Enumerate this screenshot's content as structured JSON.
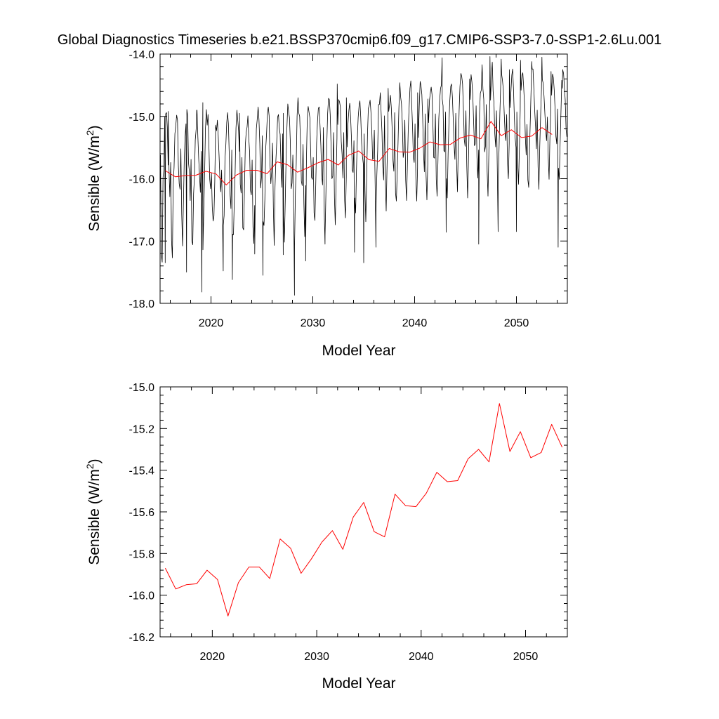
{
  "figure_title": "Global Diagnostics Timeseries b.e21.BSSP370cmip6.f09_g17.CMIP6-SSP3-7.0-SSP1-2.6Lu.001",
  "colors": {
    "monthly": "#000000",
    "annual": "#ff0000",
    "axes": "#000000",
    "background": "#ffffff"
  },
  "chart_data": [
    {
      "type": "line",
      "title": "",
      "xlabel": "Model Year",
      "ylabel": "Sensible (W/m²)",
      "ylabel_base": "Sensible (W/m",
      "ylabel_sup": "2",
      "ylabel_tail": ")",
      "xlim": [
        2015,
        2055
      ],
      "ylim": [
        -18.0,
        -14.0
      ],
      "xticks": [
        2020,
        2030,
        2040,
        2050
      ],
      "yticks": [
        -18.0,
        -17.0,
        -16.0,
        -15.0,
        -14.0
      ],
      "ytick_labels": [
        "-18.0",
        "-17.0",
        "-16.0",
        "-15.0",
        "-14.0"
      ],
      "grid": false,
      "series": [
        {
          "style": "monthly",
          "x_start": 2015.0417,
          "x_step": 0.0833333,
          "monthly_cycle": [
            -15.6,
            -16.6,
            -17.0,
            -16.4,
            -15.7,
            -15.3,
            -15.1,
            -15.0,
            -15.2,
            -15.6,
            -16.1,
            -16.2
          ],
          "values": [
            -15.62,
            -17.22,
            -17.34,
            -15.98,
            -15.86,
            -15.01,
            -14.96,
            -14.94,
            -15.17,
            -15.78,
            -15.85,
            -16.29,
            -15.74,
            -16.99,
            -17.27,
            -16.09,
            -15.82,
            -15.28,
            -15.14,
            -14.98,
            -15.06,
            -15.79,
            -16.08,
            -16.17,
            -15.52,
            -16.57,
            -17.08,
            -16.42,
            -15.71,
            -15.33,
            -15.12,
            -14.89,
            -14.99,
            -15.75,
            -15.88,
            -16.35,
            -15.69,
            -17.0,
            -17.06,
            -16.24,
            -15.99,
            -15.38,
            -15.2,
            -14.9,
            -15.33,
            -15.68,
            -15.96,
            -16.22,
            -15.56,
            -16.43,
            -17.14,
            -16.52,
            -15.94,
            -15.19,
            -14.89,
            -15.14,
            -14.97,
            -15.46,
            -16.01,
            -16.16,
            -15.91,
            -16.45,
            -16.68,
            -16.6,
            -16.04,
            -15.14,
            -15.23,
            -15.06,
            -15.32,
            -15.63,
            -16.0,
            -16.21,
            -15.86,
            -16.55,
            -16.75,
            -16.59,
            -15.68,
            -15.47,
            -15.1,
            -14.94,
            -15.12,
            -15.61,
            -16.26,
            -16.48,
            -15.54,
            -16.89,
            -16.9,
            -16.35,
            -15.89,
            -15.19,
            -14.9,
            -15.06,
            -15.23,
            -15.56,
            -16.09,
            -16.23,
            -15.66,
            -16.79,
            -16.82,
            -16.15,
            -15.46,
            -15.26,
            -15.17,
            -14.99,
            -15.35,
            -15.57,
            -16.18,
            -16.26,
            -15.7,
            -16.78,
            -17.04,
            -16.43,
            -15.87,
            -15.2,
            -15.04,
            -14.85,
            -15.05,
            -15.43,
            -16.15,
            -15.98,
            -15.31,
            -16.69,
            -16.75,
            -16.33,
            -15.52,
            -15.29,
            -14.94,
            -14.85,
            -14.99,
            -15.75,
            -16.08,
            -15.89,
            -15.43,
            -16.46,
            -17.07,
            -16.13,
            -15.71,
            -15.42,
            -15.01,
            -14.97,
            -15.19,
            -15.29,
            -15.81,
            -16.14,
            -15.28,
            -16.6,
            -17.02,
            -16.4,
            -15.7,
            -15.19,
            -14.8,
            -14.93,
            -15.02,
            -15.42,
            -16.16,
            -16.07,
            -15.62,
            -16.49,
            -17.08,
            -16.23,
            -15.76,
            -15.0,
            -14.7,
            -14.95,
            -15.0,
            -15.43,
            -16.04,
            -16.11,
            -15.45,
            -16.4,
            -16.93,
            -16.11,
            -15.71,
            -15.04,
            -14.84,
            -14.93,
            -15.02,
            -15.59,
            -15.98,
            -16.01,
            -15.66,
            -16.55,
            -16.67,
            -16.09,
            -15.43,
            -15.1,
            -14.87,
            -14.85,
            -15.15,
            -15.47,
            -15.95,
            -16.1,
            -15.18,
            -16.54,
            -16.9,
            -16.22,
            -15.46,
            -14.96,
            -14.71,
            -14.73,
            -14.97,
            -15.46,
            -16.0,
            -15.96,
            -15.26,
            -16.3,
            -16.74,
            -16.01,
            -15.35,
            -15.13,
            -14.73,
            -14.77,
            -14.85,
            -15.4,
            -15.61,
            -15.99,
            -15.26,
            -16.35,
            -16.63,
            -15.97,
            -15.49,
            -15.12,
            -14.9,
            -14.79,
            -15.0,
            -15.34,
            -15.86,
            -15.9,
            -15.39,
            -16.31,
            -16.55,
            -15.85,
            -15.36,
            -15.02,
            -14.83,
            -14.75,
            -15.02,
            -15.42,
            -15.64,
            -15.76,
            -15.28,
            -16.19,
            -16.69,
            -16.0,
            -15.28,
            -14.87,
            -14.82,
            -14.74,
            -14.93,
            -15.23,
            -15.69,
            -15.67,
            -15.22,
            -16.1,
            -16.54,
            -15.94,
            -15.54,
            -14.81,
            -14.81,
            -14.62,
            -14.94,
            -15.25,
            -15.81,
            -16.02,
            -14.99,
            -16.02,
            -16.52,
            -15.82,
            -15.25,
            -14.92,
            -14.81,
            -14.66,
            -14.86,
            -15.2,
            -15.71,
            -15.88,
            -14.94,
            -16.23,
            -16.36,
            -15.91,
            -15.42,
            -14.87,
            -14.46,
            -14.69,
            -14.8,
            -15.12,
            -15.66,
            -15.56,
            -15.06,
            -16.02,
            -16.35,
            -15.8,
            -15.23,
            -14.87,
            -14.55,
            -14.43,
            -14.79,
            -15.15,
            -15.65,
            -15.74,
            -15.12,
            -16.0,
            -16.36,
            -15.82,
            -15.34,
            -14.85,
            -14.44,
            -14.51,
            -14.65,
            -15.03,
            -15.59,
            -15.89,
            -14.96,
            -15.94,
            -16.34,
            -15.77,
            -15.1,
            -14.75,
            -14.62,
            -14.53,
            -14.65,
            -15.11,
            -15.66,
            -15.67,
            -14.96,
            -16.01,
            -16.28,
            -15.74,
            -15.05,
            -14.75,
            -14.55,
            -14.5,
            -14.72,
            -14.83,
            -15.55,
            -15.57,
            -14.93,
            -16.0,
            -16.31,
            -15.6,
            -15.1,
            -14.75,
            -14.52,
            -14.48,
            -14.69,
            -15.05,
            -15.46,
            -15.69,
            -14.95,
            -15.75,
            -16.21,
            -15.48,
            -14.91,
            -14.52,
            -14.31,
            -14.36,
            -14.48,
            -14.88,
            -15.37,
            -15.48,
            -14.91,
            -15.8,
            -16.31,
            -15.71,
            -14.97,
            -14.73,
            -14.33,
            -14.45,
            -14.64,
            -15.08,
            -15.47,
            -15.44,
            -14.83,
            -15.66,
            -15.99,
            -15.54,
            -14.96,
            -14.63,
            -14.58,
            -14.17,
            -14.56,
            -14.73,
            -15.57,
            -15.48,
            -14.81,
            -15.88,
            -16.28,
            -15.61,
            -14.81,
            -14.74,
            -14.36,
            -14.13,
            -14.6,
            -14.78,
            -15.28,
            -15.49,
            -14.91,
            -15.88,
            -16.12,
            -15.54,
            -14.95,
            -14.5,
            -14.32,
            -14.42,
            -14.56,
            -14.92,
            -15.24,
            -15.39,
            -14.97,
            -15.77,
            -16.0,
            -15.43,
            -14.86,
            -14.62,
            -14.34,
            -14.24,
            -14.55,
            -15.0,
            -15.35,
            -15.5,
            -14.93,
            -15.74,
            -16.09,
            -15.53,
            -14.9,
            -14.58,
            -14.35,
            -14.3,
            -14.53,
            -14.8,
            -15.34,
            -15.62,
            -15.13,
            -16.02,
            -16.14,
            -15.5,
            -15.01,
            -14.47,
            -14.24,
            -14.24,
            -14.55,
            -14.9,
            -15.16,
            -15.52,
            -14.9,
            -15.81,
            -16.17,
            -15.49,
            -15.01,
            -14.58,
            -14.41,
            -14.47,
            -14.68,
            -14.95,
            -15.22,
            -15.39,
            -15.01,
            -15.66,
            -16.01,
            -15.35,
            -14.93,
            -14.66,
            -14.32,
            -14.38,
            -14.57,
            -14.87,
            -15.32,
            -15.44,
            -14.88,
            -15.83,
            -16.01,
            -15.45,
            -14.94,
            -14.42,
            -14.25,
            -14.31,
            -14.52,
            -14.74,
            -15.21,
            -15.33,
            -14.75,
            -15.8,
            -16.09,
            -15.44,
            -14.76,
            -14.45,
            -14.27,
            -14.12,
            -14.48,
            -14.76,
            -15.2,
            -15.3,
            -14.6,
            -15.7,
            -15.97,
            -15.36,
            -14.77,
            -14.43,
            -14.25,
            -14.12,
            -14.5,
            -14.82,
            -15.33
          ],
          "extrema": [
            [
              2015.5,
              -17.35
            ],
            [
              2017.6,
              -17.5
            ],
            [
              2019.1,
              -17.82
            ],
            [
              2021.2,
              -17.48
            ],
            [
              2022.1,
              -17.62
            ],
            [
              2024.3,
              -17.21
            ],
            [
              2025.1,
              -17.55
            ],
            [
              2027.1,
              -17.22
            ],
            [
              2028.2,
              -17.87
            ],
            [
              2029.3,
              -17.32
            ],
            [
              2031.2,
              -17.05
            ],
            [
              2034.1,
              -17.18
            ],
            [
              2035.0,
              -17.35
            ],
            [
              2036.2,
              -17.1
            ],
            [
              2043.1,
              -16.86
            ],
            [
              2046.3,
              -17.05
            ],
            [
              2048.2,
              -16.85
            ],
            [
              2050.0,
              -16.85
            ],
            [
              2054.1,
              -17.1
            ],
            [
              2015.8,
              -14.92
            ],
            [
              2018.6,
              -14.9
            ],
            [
              2019.2,
              -14.78
            ],
            [
              2022.8,
              -14.95
            ],
            [
              2027.1,
              -14.95
            ],
            [
              2032.4,
              -14.48
            ],
            [
              2033.3,
              -14.7
            ],
            [
              2037.4,
              -14.55
            ],
            [
              2040.3,
              -14.62
            ],
            [
              2041.3,
              -14.72
            ],
            [
              2042.7,
              -14.06
            ],
            [
              2045.4,
              -14.4
            ],
            [
              2047.4,
              -14.04
            ],
            [
              2048.5,
              -14.08
            ],
            [
              2049.3,
              -14.25
            ],
            [
              2050.4,
              -14.1
            ],
            [
              2051.5,
              -14.12
            ],
            [
              2052.5,
              -14.05
            ],
            [
              2053.4,
              -14.28
            ],
            [
              2054.5,
              -14.55
            ]
          ]
        },
        {
          "style": "annual",
          "x": [
            2015.5,
            2016.5,
            2017.5,
            2018.5,
            2019.5,
            2020.5,
            2021.5,
            2022.5,
            2023.5,
            2024.5,
            2025.5,
            2026.5,
            2027.5,
            2028.5,
            2029.5,
            2030.5,
            2031.5,
            2032.5,
            2033.5,
            2034.5,
            2035.5,
            2036.5,
            2037.5,
            2038.5,
            2039.5,
            2040.5,
            2041.5,
            2042.5,
            2043.5,
            2044.5,
            2045.5,
            2046.5,
            2047.5,
            2048.5,
            2049.5,
            2050.5,
            2051.5,
            2052.5,
            2053.5
          ],
          "values": [
            -15.87,
            -15.97,
            -15.95,
            -15.945,
            -15.88,
            -15.925,
            -16.1,
            -15.94,
            -15.865,
            -15.865,
            -15.92,
            -15.73,
            -15.775,
            -15.895,
            -15.825,
            -15.745,
            -15.69,
            -15.78,
            -15.625,
            -15.555,
            -15.695,
            -15.72,
            -15.515,
            -15.57,
            -15.575,
            -15.51,
            -15.41,
            -15.455,
            -15.45,
            -15.345,
            -15.3,
            -15.36,
            -15.08,
            -15.31,
            -15.215,
            -15.34,
            -15.315,
            -15.18,
            -15.29
          ]
        }
      ]
    },
    {
      "type": "line",
      "title": "",
      "xlabel": "Model Year",
      "ylabel": "Sensible (W/m²)",
      "ylabel_base": "Sensible (W/m",
      "ylabel_sup": "2",
      "ylabel_tail": ")",
      "xlim": [
        2015,
        2054
      ],
      "ylim": [
        -16.2,
        -15.0
      ],
      "xticks": [
        2020,
        2030,
        2040,
        2050
      ],
      "yticks": [
        -16.2,
        -16.0,
        -15.8,
        -15.6,
        -15.4,
        -15.2,
        -15.0
      ],
      "ytick_labels": [
        "-16.2",
        "-16.0",
        "-15.8",
        "-15.6",
        "-15.4",
        "-15.2",
        "-15.0"
      ],
      "grid": false,
      "series": [
        {
          "style": "annual",
          "x": [
            2015.5,
            2016.5,
            2017.5,
            2018.5,
            2019.5,
            2020.5,
            2021.5,
            2022.5,
            2023.5,
            2024.5,
            2025.5,
            2026.5,
            2027.5,
            2028.5,
            2029.5,
            2030.5,
            2031.5,
            2032.5,
            2033.5,
            2034.5,
            2035.5,
            2036.5,
            2037.5,
            2038.5,
            2039.5,
            2040.5,
            2041.5,
            2042.5,
            2043.5,
            2044.5,
            2045.5,
            2046.5,
            2047.5,
            2048.5,
            2049.5,
            2050.5,
            2051.5,
            2052.5,
            2053.5
          ],
          "values": [
            -15.87,
            -15.97,
            -15.95,
            -15.945,
            -15.88,
            -15.925,
            -16.1,
            -15.94,
            -15.865,
            -15.865,
            -15.92,
            -15.73,
            -15.775,
            -15.895,
            -15.825,
            -15.745,
            -15.69,
            -15.78,
            -15.625,
            -15.555,
            -15.695,
            -15.72,
            -15.515,
            -15.57,
            -15.575,
            -15.51,
            -15.41,
            -15.455,
            -15.45,
            -15.345,
            -15.3,
            -15.36,
            -15.08,
            -15.31,
            -15.215,
            -15.34,
            -15.315,
            -15.18,
            -15.29
          ]
        }
      ]
    }
  ]
}
